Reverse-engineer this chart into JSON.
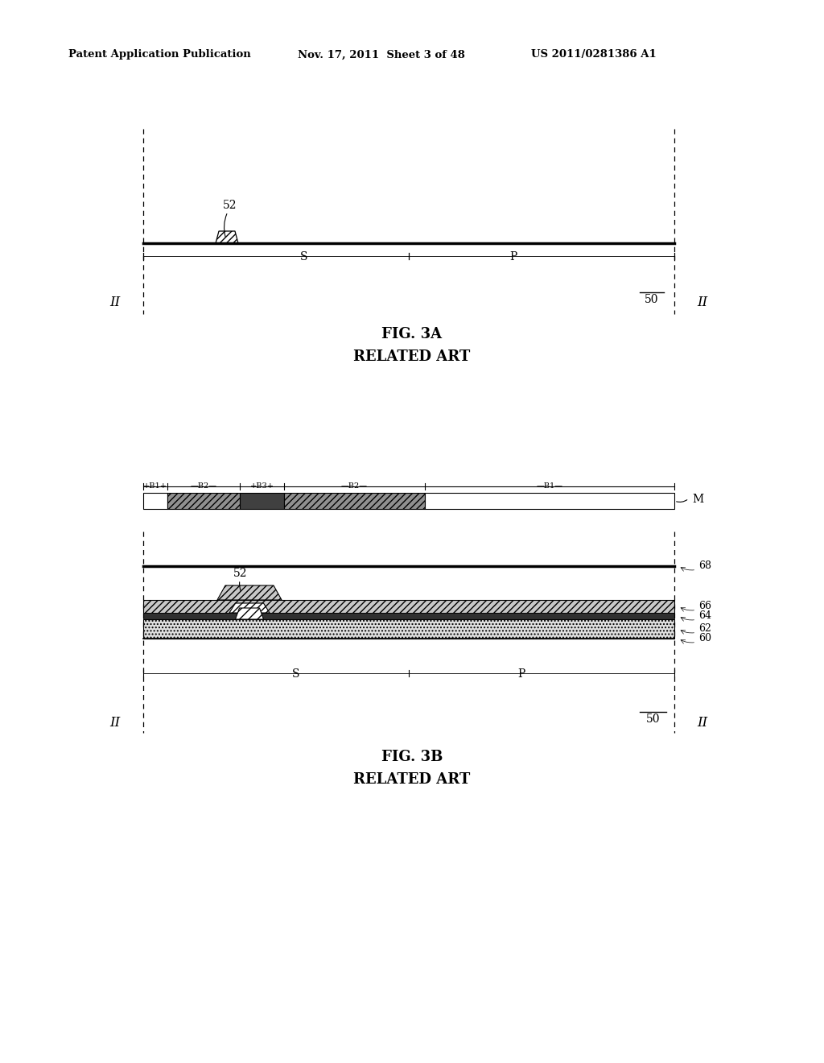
{
  "bg_color": "#ffffff",
  "header_left": "Patent Application Publication",
  "header_mid": "Nov. 17, 2011  Sheet 3 of 48",
  "header_right": "US 2011/0281386 A1",
  "fig3a_title": "FIG. 3A",
  "fig3a_subtitle": "RELATED ART",
  "fig3b_title": "FIG. 3B",
  "fig3b_subtitle": "RELATED ART"
}
